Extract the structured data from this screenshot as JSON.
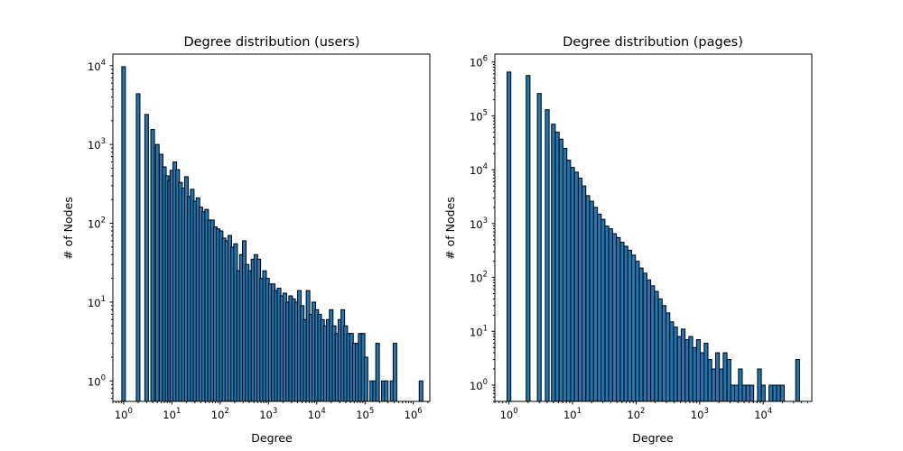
{
  "chart_data": [
    {
      "type": "bar",
      "title": "Degree distribution (users)",
      "xlabel": "Degree",
      "ylabel": "# of Nodes",
      "xscale": "log",
      "yscale": "log",
      "xlim": [
        0.6,
        2200000
      ],
      "ylim": [
        0.55,
        14000
      ],
      "xticks": [
        {
          "base": "10",
          "exp": "0",
          "value": 1
        },
        {
          "base": "10",
          "exp": "1",
          "value": 10
        },
        {
          "base": "10",
          "exp": "2",
          "value": 100
        },
        {
          "base": "10",
          "exp": "3",
          "value": 1000
        },
        {
          "base": "10",
          "exp": "4",
          "value": 10000
        },
        {
          "base": "10",
          "exp": "5",
          "value": 100000
        },
        {
          "base": "10",
          "exp": "6",
          "value": 1000000
        }
      ],
      "yticks": [
        {
          "base": "10",
          "exp": "0",
          "value": 1
        },
        {
          "base": "10",
          "exp": "1",
          "value": 10
        },
        {
          "base": "10",
          "exp": "2",
          "value": 100
        },
        {
          "base": "10",
          "exp": "3",
          "value": 1000
        },
        {
          "base": "10",
          "exp": "4",
          "value": 10000
        }
      ],
      "grid": false,
      "bars": [
        {
          "x": 1.0,
          "y": 9700
        },
        {
          "x": 2.0,
          "y": 4400
        },
        {
          "x": 3.0,
          "y": 2400
        },
        {
          "x": 4.0,
          "y": 1550
        },
        {
          "x": 5.0,
          "y": 1000
        },
        {
          "x": 6.0,
          "y": 750
        },
        {
          "x": 7.0,
          "y": 520
        },
        {
          "x": 8.0,
          "y": 400
        },
        {
          "x": 9.0,
          "y": 350
        },
        {
          "x": 10.0,
          "y": 470
        },
        {
          "x": 11.5,
          "y": 600
        },
        {
          "x": 13.2,
          "y": 480
        },
        {
          "x": 15.1,
          "y": 330
        },
        {
          "x": 17.4,
          "y": 280
        },
        {
          "x": 20.0,
          "y": 390
        },
        {
          "x": 23.0,
          "y": 220
        },
        {
          "x": 26.4,
          "y": 270
        },
        {
          "x": 30.2,
          "y": 190
        },
        {
          "x": 34.7,
          "y": 210
        },
        {
          "x": 39.8,
          "y": 160
        },
        {
          "x": 45.7,
          "y": 140
        },
        {
          "x": 52.5,
          "y": 150
        },
        {
          "x": 60.3,
          "y": 110
        },
        {
          "x": 69.2,
          "y": 110
        },
        {
          "x": 79.4,
          "y": 90
        },
        {
          "x": 91.2,
          "y": 85
        },
        {
          "x": 104.7,
          "y": 80
        },
        {
          "x": 120.2,
          "y": 65
        },
        {
          "x": 138.0,
          "y": 60
        },
        {
          "x": 158.5,
          "y": 70
        },
        {
          "x": 182.0,
          "y": 50
        },
        {
          "x": 208.9,
          "y": 55
        },
        {
          "x": 239.9,
          "y": 25
        },
        {
          "x": 275.4,
          "y": 40
        },
        {
          "x": 316.2,
          "y": 60
        },
        {
          "x": 363.1,
          "y": 30
        },
        {
          "x": 416.9,
          "y": 25
        },
        {
          "x": 478.6,
          "y": 35
        },
        {
          "x": 549.5,
          "y": 40
        },
        {
          "x": 631.0,
          "y": 35
        },
        {
          "x": 724.4,
          "y": 20
        },
        {
          "x": 831.8,
          "y": 25
        },
        {
          "x": 955.0,
          "y": 20
        },
        {
          "x": 1096.5,
          "y": 17
        },
        {
          "x": 1258.9,
          "y": 17
        },
        {
          "x": 1445.4,
          "y": 14
        },
        {
          "x": 1659.6,
          "y": 15
        },
        {
          "x": 1905.5,
          "y": 12
        },
        {
          "x": 2187.8,
          "y": 13
        },
        {
          "x": 2511.9,
          "y": 10
        },
        {
          "x": 2884.0,
          "y": 12
        },
        {
          "x": 3311.3,
          "y": 11
        },
        {
          "x": 3801.9,
          "y": 10
        },
        {
          "x": 4365.2,
          "y": 14
        },
        {
          "x": 5011.9,
          "y": 9
        },
        {
          "x": 5754.4,
          "y": 6
        },
        {
          "x": 6606.9,
          "y": 14
        },
        {
          "x": 7585.8,
          "y": 7
        },
        {
          "x": 8709.6,
          "y": 10
        },
        {
          "x": 10000,
          "y": 8
        },
        {
          "x": 11481.5,
          "y": 7
        },
        {
          "x": 13182.6,
          "y": 6
        },
        {
          "x": 15135.6,
          "y": 5
        },
        {
          "x": 17378.0,
          "y": 6
        },
        {
          "x": 19952.6,
          "y": 8
        },
        {
          "x": 22908.7,
          "y": 5
        },
        {
          "x": 26302.7,
          "y": 4
        },
        {
          "x": 30199.5,
          "y": 6
        },
        {
          "x": 34673.7,
          "y": 8
        },
        {
          "x": 39810.7,
          "y": 5
        },
        {
          "x": 45708.8,
          "y": 4
        },
        {
          "x": 52480.7,
          "y": 4
        },
        {
          "x": 60256.0,
          "y": 3
        },
        {
          "x": 69183.1,
          "y": 3
        },
        {
          "x": 79432.8,
          "y": 4
        },
        {
          "x": 91201.1,
          "y": 4
        },
        {
          "x": 104712.9,
          "y": 2
        },
        {
          "x": 138038.4,
          "y": 1
        },
        {
          "x": 158489.3,
          "y": 1
        },
        {
          "x": 181970.1,
          "y": 3
        },
        {
          "x": 239883.3,
          "y": 1
        },
        {
          "x": 275422.9,
          "y": 1
        },
        {
          "x": 363078.1,
          "y": 1
        },
        {
          "x": 416869.4,
          "y": 3
        },
        {
          "x": 1445439.8,
          "y": 1
        }
      ]
    },
    {
      "type": "bar",
      "title": "Degree distribution (pages)",
      "xlabel": "Degree",
      "ylabel": "# of Nodes",
      "xscale": "log",
      "yscale": "log",
      "xlim": [
        0.6,
        58000
      ],
      "ylim": [
        0.5,
        1400000
      ],
      "xticks": [
        {
          "base": "10",
          "exp": "0",
          "value": 1
        },
        {
          "base": "10",
          "exp": "1",
          "value": 10
        },
        {
          "base": "10",
          "exp": "2",
          "value": 100
        },
        {
          "base": "10",
          "exp": "3",
          "value": 1000
        },
        {
          "base": "10",
          "exp": "4",
          "value": 10000
        }
      ],
      "yticks": [
        {
          "base": "10",
          "exp": "0",
          "value": 1
        },
        {
          "base": "10",
          "exp": "1",
          "value": 10
        },
        {
          "base": "10",
          "exp": "2",
          "value": 100
        },
        {
          "base": "10",
          "exp": "3",
          "value": 1000
        },
        {
          "base": "10",
          "exp": "4",
          "value": 10000
        },
        {
          "base": "10",
          "exp": "5",
          "value": 100000
        },
        {
          "base": "10",
          "exp": "6",
          "value": 1000000
        }
      ],
      "grid": false,
      "bars": [
        {
          "x": 1.0,
          "y": 650000
        },
        {
          "x": 2.0,
          "y": 560000
        },
        {
          "x": 3.0,
          "y": 260000
        },
        {
          "x": 4.0,
          "y": 130000
        },
        {
          "x": 5.0,
          "y": 70000
        },
        {
          "x": 5.75,
          "y": 50000
        },
        {
          "x": 6.6,
          "y": 37000
        },
        {
          "x": 7.6,
          "y": 25000
        },
        {
          "x": 8.7,
          "y": 15000
        },
        {
          "x": 10.0,
          "y": 11000
        },
        {
          "x": 11.5,
          "y": 9000
        },
        {
          "x": 13.2,
          "y": 7000
        },
        {
          "x": 15.1,
          "y": 5000
        },
        {
          "x": 17.4,
          "y": 3300
        },
        {
          "x": 20.0,
          "y": 2600
        },
        {
          "x": 23.0,
          "y": 2000
        },
        {
          "x": 26.4,
          "y": 1500
        },
        {
          "x": 30.2,
          "y": 1200
        },
        {
          "x": 34.7,
          "y": 900
        },
        {
          "x": 39.8,
          "y": 800
        },
        {
          "x": 45.7,
          "y": 650
        },
        {
          "x": 52.5,
          "y": 550
        },
        {
          "x": 60.3,
          "y": 450
        },
        {
          "x": 69.2,
          "y": 380
        },
        {
          "x": 79.4,
          "y": 320
        },
        {
          "x": 91.2,
          "y": 260
        },
        {
          "x": 104.7,
          "y": 200
        },
        {
          "x": 120.2,
          "y": 150
        },
        {
          "x": 138.0,
          "y": 120
        },
        {
          "x": 158.5,
          "y": 90
        },
        {
          "x": 182.0,
          "y": 70
        },
        {
          "x": 208.9,
          "y": 55
        },
        {
          "x": 239.9,
          "y": 40
        },
        {
          "x": 275.4,
          "y": 30
        },
        {
          "x": 316.2,
          "y": 22
        },
        {
          "x": 363.1,
          "y": 15
        },
        {
          "x": 416.9,
          "y": 12
        },
        {
          "x": 478.6,
          "y": 8
        },
        {
          "x": 549.5,
          "y": 11
        },
        {
          "x": 631.0,
          "y": 7
        },
        {
          "x": 724.4,
          "y": 8
        },
        {
          "x": 831.8,
          "y": 5
        },
        {
          "x": 955.0,
          "y": 7
        },
        {
          "x": 1096.5,
          "y": 4
        },
        {
          "x": 1258.9,
          "y": 6
        },
        {
          "x": 1445.4,
          "y": 3
        },
        {
          "x": 1659.6,
          "y": 2
        },
        {
          "x": 1905.5,
          "y": 4
        },
        {
          "x": 2187.8,
          "y": 2
        },
        {
          "x": 2511.9,
          "y": 4
        },
        {
          "x": 2884.0,
          "y": 3
        },
        {
          "x": 3311.3,
          "y": 1
        },
        {
          "x": 3801.9,
          "y": 1
        },
        {
          "x": 4365.2,
          "y": 2
        },
        {
          "x": 5011.9,
          "y": 1
        },
        {
          "x": 5754.4,
          "y": 1
        },
        {
          "x": 6606.9,
          "y": 1
        },
        {
          "x": 8709.6,
          "y": 2
        },
        {
          "x": 10000,
          "y": 1
        },
        {
          "x": 13182.6,
          "y": 1
        },
        {
          "x": 15135.6,
          "y": 1
        },
        {
          "x": 17378.0,
          "y": 1
        },
        {
          "x": 19952.6,
          "y": 1
        },
        {
          "x": 34673.7,
          "y": 3
        }
      ]
    }
  ]
}
